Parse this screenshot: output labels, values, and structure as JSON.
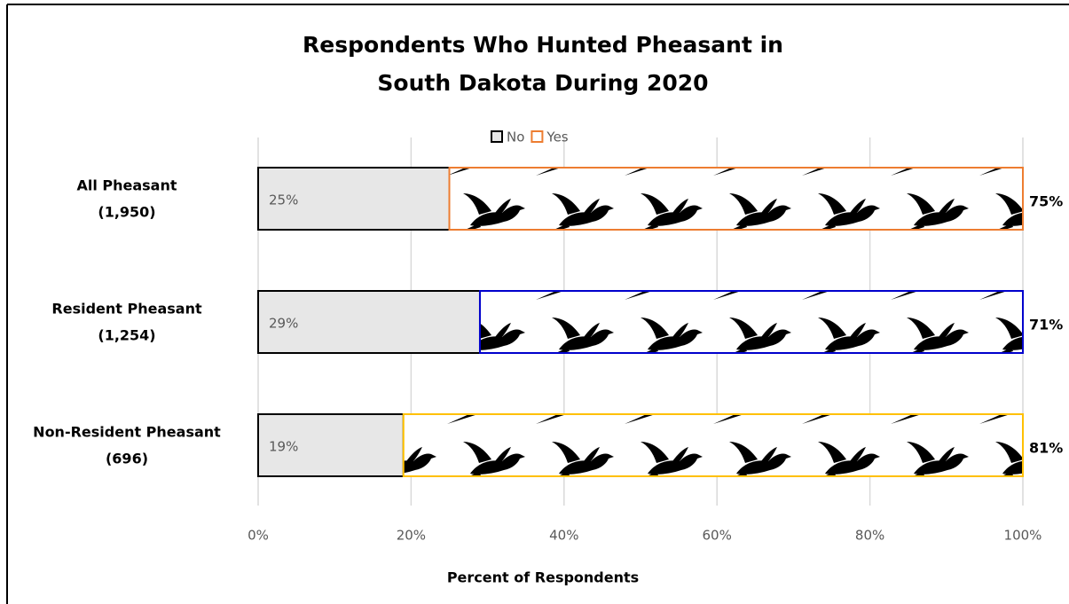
{
  "chart_data": {
    "type": "stacked-bar-horizontal",
    "title": [
      "Respondents Who Hunted Pheasant in",
      "South Dakota During 2020"
    ],
    "categories": [
      [
        "All Pheasant",
        "(1,950)"
      ],
      [
        "Resident Pheasant",
        "(1,254)"
      ],
      [
        "Non-Resident Pheasant",
        "(696)"
      ]
    ],
    "series": [
      {
        "name": "No",
        "color": "#e7e7e7",
        "values": [
          25,
          29,
          19
        ],
        "value_labels": [
          "25%",
          "29%",
          "19%"
        ]
      },
      {
        "name": "Yes",
        "colors": [
          "#ed7d31",
          "#0000cc",
          "#ffc000"
        ],
        "values": [
          75,
          71,
          81
        ],
        "value_labels": [
          "75%",
          "71%",
          "81%"
        ]
      }
    ],
    "xlim": [
      0,
      100
    ],
    "xticks": [
      {
        "value": 0,
        "label": "0%"
      },
      {
        "value": 20,
        "label": "20%"
      },
      {
        "value": 40,
        "label": "40%"
      },
      {
        "value": 60,
        "label": "60%"
      },
      {
        "value": 80,
        "label": "80%"
      },
      {
        "value": 100,
        "label": "100%"
      }
    ],
    "x_label": "Percent of Respondents",
    "grid": true,
    "legend": "top"
  }
}
